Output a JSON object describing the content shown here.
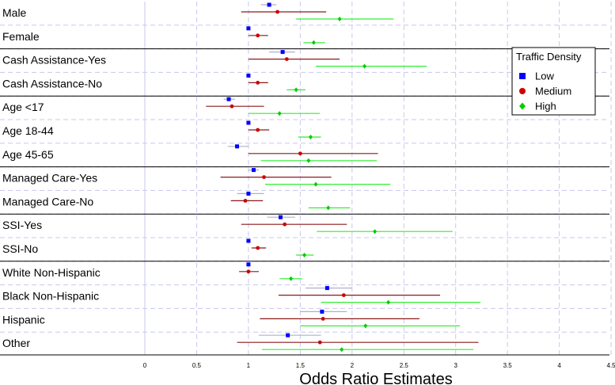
{
  "chart_data": {
    "type": "scatter",
    "subtype": "forest-plot",
    "xlabel": "Odds Ratio Estimates",
    "xlim": [
      0,
      4.5
    ],
    "xticks": [
      "0",
      "0.5",
      "1",
      "1.5",
      "2",
      "2.5",
      "3",
      "3.5",
      "4",
      "4.5"
    ],
    "grid": true,
    "legend": {
      "title": "Traffic Density",
      "position": "top-right"
    },
    "categories": [
      "Male",
      "Female",
      "Cash Assistance-Yes",
      "Cash Assistance-No",
      "Age <17",
      "Age 18-44",
      "Age 45-65",
      "Managed Care-Yes",
      "Managed Care-No",
      "SSI-Yes",
      "SSI-No",
      "White Non-Hispanic",
      "Black Non-Hispanic",
      "Hispanic",
      "Other"
    ],
    "group_separators_after": [
      1,
      3,
      6,
      8,
      10
    ],
    "series": [
      {
        "name": "Low",
        "color": "#0000ff",
        "line_color": "#b0b0cc",
        "marker": "square",
        "values": [
          {
            "est": 1.2,
            "lo": 1.12,
            "hi": 1.27
          },
          {
            "est": 1.0,
            "lo": 0.99,
            "hi": 1.01
          },
          {
            "est": 1.33,
            "lo": 1.2,
            "hi": 1.45
          },
          {
            "est": 1.0,
            "lo": 0.99,
            "hi": 1.01
          },
          {
            "est": 0.81,
            "lo": 0.76,
            "hi": 0.87
          },
          {
            "est": 1.0,
            "lo": 0.99,
            "hi": 1.01
          },
          {
            "est": 0.89,
            "lo": 0.8,
            "hi": 1.0
          },
          {
            "est": 1.05,
            "lo": 1.0,
            "hi": 1.1
          },
          {
            "est": 1.0,
            "lo": 0.89,
            "hi": 1.15
          },
          {
            "est": 1.31,
            "lo": 1.18,
            "hi": 1.45
          },
          {
            "est": 1.0,
            "lo": 0.99,
            "hi": 1.01
          },
          {
            "est": 1.0,
            "lo": 0.99,
            "hi": 1.01
          },
          {
            "est": 1.76,
            "lo": 1.55,
            "hi": 2.0
          },
          {
            "est": 1.71,
            "lo": 1.5,
            "hi": 1.95
          },
          {
            "est": 1.38,
            "lo": 1.1,
            "hi": 1.7
          }
        ]
      },
      {
        "name": "Medium",
        "color": "#cc0000",
        "line_color": "#8b1a1a",
        "marker": "circle",
        "values": [
          {
            "est": 1.28,
            "lo": 0.93,
            "hi": 1.75
          },
          {
            "est": 1.09,
            "lo": 1.0,
            "hi": 1.19
          },
          {
            "est": 1.37,
            "lo": 1.0,
            "hi": 1.88
          },
          {
            "est": 1.09,
            "lo": 1.0,
            "hi": 1.19
          },
          {
            "est": 0.84,
            "lo": 0.59,
            "hi": 1.15
          },
          {
            "est": 1.09,
            "lo": 1.0,
            "hi": 1.2
          },
          {
            "est": 1.5,
            "lo": 1.0,
            "hi": 2.25
          },
          {
            "est": 1.15,
            "lo": 0.73,
            "hi": 1.8
          },
          {
            "est": 0.97,
            "lo": 0.83,
            "hi": 1.14
          },
          {
            "est": 1.35,
            "lo": 0.93,
            "hi": 1.95
          },
          {
            "est": 1.09,
            "lo": 1.03,
            "hi": 1.17
          },
          {
            "est": 1.0,
            "lo": 0.91,
            "hi": 1.1
          },
          {
            "est": 1.92,
            "lo": 1.29,
            "hi": 2.85
          },
          {
            "est": 1.72,
            "lo": 1.11,
            "hi": 2.65
          },
          {
            "est": 1.69,
            "lo": 0.89,
            "hi": 3.22
          }
        ]
      },
      {
        "name": "High",
        "color": "#00cc00",
        "line_color": "#33ee33",
        "marker": "diamond",
        "values": [
          {
            "est": 1.88,
            "lo": 1.46,
            "hi": 2.4
          },
          {
            "est": 1.63,
            "lo": 1.53,
            "hi": 1.74
          },
          {
            "est": 2.12,
            "lo": 1.65,
            "hi": 2.72
          },
          {
            "est": 1.46,
            "lo": 1.37,
            "hi": 1.55
          },
          {
            "est": 1.3,
            "lo": 1.0,
            "hi": 1.69
          },
          {
            "est": 1.6,
            "lo": 1.48,
            "hi": 1.7
          },
          {
            "est": 1.58,
            "lo": 1.12,
            "hi": 2.24
          },
          {
            "est": 1.65,
            "lo": 1.16,
            "hi": 2.37
          },
          {
            "est": 1.77,
            "lo": 1.58,
            "hi": 1.98
          },
          {
            "est": 2.22,
            "lo": 1.66,
            "hi": 2.97
          },
          {
            "est": 1.54,
            "lo": 1.46,
            "hi": 1.63
          },
          {
            "est": 1.41,
            "lo": 1.3,
            "hi": 1.52
          },
          {
            "est": 2.35,
            "lo": 1.7,
            "hi": 3.24
          },
          {
            "est": 2.13,
            "lo": 1.5,
            "hi": 3.04
          },
          {
            "est": 1.9,
            "lo": 1.13,
            "hi": 3.17
          }
        ]
      }
    ]
  }
}
